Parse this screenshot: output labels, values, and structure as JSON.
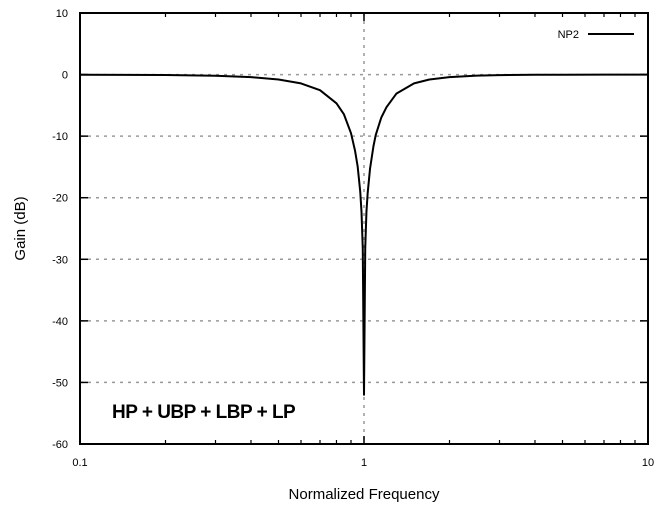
{
  "chart_data": {
    "type": "line",
    "title": "",
    "xlabel": "Normalized Frequency",
    "ylabel": "Gain (dB)",
    "xscale": "log",
    "xlim": [
      0.1,
      10
    ],
    "ylim": [
      -60,
      10
    ],
    "xticks": [
      0.1,
      1,
      10
    ],
    "xtick_labels": [
      "0.1",
      "1",
      "10"
    ],
    "yticks": [
      10,
      0,
      -10,
      -20,
      -30,
      -40,
      -50,
      -60
    ],
    "ytick_labels": [
      "10",
      "0",
      "-10",
      "-20",
      "-30",
      "-40",
      "-50",
      "-60"
    ],
    "grid": "dashed",
    "legend_position": "top-right",
    "annotation": "HP + UBP + LBP + LP",
    "line_color": "#000000",
    "grid_color": "#999999",
    "series": [
      {
        "name": "NP2",
        "x": [
          0.1,
          0.2,
          0.3,
          0.4,
          0.5,
          0.6,
          0.7,
          0.8,
          0.85,
          0.9,
          0.93,
          0.95,
          0.97,
          0.98,
          0.99,
          1.0,
          1.01,
          1.02,
          1.03,
          1.05,
          1.08,
          1.1,
          1.15,
          1.2,
          1.3,
          1.5,
          1.7,
          2.0,
          2.5,
          3.0,
          4.0,
          5.0,
          7.0,
          10.0
        ],
        "y": [
          -0.02,
          -0.08,
          -0.2,
          -0.41,
          -0.8,
          -1.43,
          -2.54,
          -4.67,
          -6.46,
          -9.52,
          -12.37,
          -14.94,
          -19.03,
          -22.32,
          -28.2,
          -52,
          -28.2,
          -22.3,
          -19.3,
          -15.3,
          -11.6,
          -9.8,
          -7.0,
          -5.3,
          -3.1,
          -1.43,
          -0.8,
          -0.41,
          -0.17,
          -0.09,
          -0.03,
          -0.02,
          -0.01,
          0.0
        ]
      }
    ]
  }
}
